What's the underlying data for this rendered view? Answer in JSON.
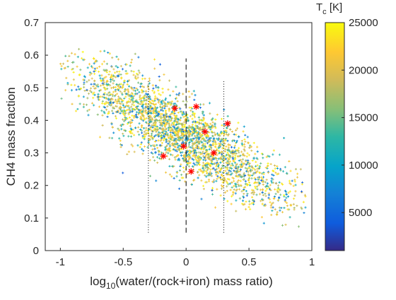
{
  "chart_data": {
    "type": "scatter",
    "title": "",
    "xlabel_main": "log",
    "xlabel_sub": "10",
    "xlabel_rest": "(water/(rock+iron) mass ratio)",
    "ylabel": "CH4 mass fraction",
    "xlim": [
      -1.12,
      1.0
    ],
    "ylim": [
      0,
      0.7
    ],
    "xticks": [
      -1,
      -0.5,
      0,
      0.5,
      1
    ],
    "xtick_labels": [
      "-1",
      "-0.5",
      "0",
      "0.5",
      "1"
    ],
    "yticks": [
      0,
      0.1,
      0.2,
      0.3,
      0.4,
      0.5,
      0.6,
      0.7
    ],
    "ytick_labels": [
      "0",
      "0.1",
      "0.2",
      "0.3",
      "0.4",
      "0.5",
      "0.6",
      "0.7"
    ],
    "grid": false,
    "colorbar": {
      "label_main": "T",
      "label_sub": "c",
      "label_rest": " [K]",
      "range": [
        1000,
        25000
      ],
      "ticks": [
        5000,
        10000,
        15000,
        20000,
        25000
      ],
      "tick_labels": [
        "5000",
        "10000",
        "15000",
        "20000",
        "25000"
      ],
      "colormap": "parula"
    },
    "reference_lines": [
      {
        "x": -0.3,
        "style": "dotted",
        "y_range": [
          0.055,
          0.52
        ]
      },
      {
        "x": 0.0,
        "style": "dashed",
        "y_range": [
          0.055,
          0.59
        ]
      },
      {
        "x": 0.3,
        "style": "dotted",
        "y_range": [
          0.055,
          0.52
        ]
      }
    ],
    "cloud": {
      "description_trend": "negative correlation: CH4 fraction ≈ 0.35 - 0.22*x",
      "x_range": [
        -1.0,
        0.95
      ],
      "point_count": 2600,
      "marker": "small plus"
    },
    "highlighted": {
      "marker": "asterisk",
      "color": "#ff0000",
      "points": [
        {
          "x": -0.09,
          "y": 0.437
        },
        {
          "x": 0.08,
          "y": 0.442
        },
        {
          "x": 0.33,
          "y": 0.39
        },
        {
          "x": 0.15,
          "y": 0.365
        },
        {
          "x": -0.02,
          "y": 0.32
        },
        {
          "x": 0.22,
          "y": 0.3
        },
        {
          "x": -0.18,
          "y": 0.29
        },
        {
          "x": 0.04,
          "y": 0.243
        }
      ]
    }
  }
}
